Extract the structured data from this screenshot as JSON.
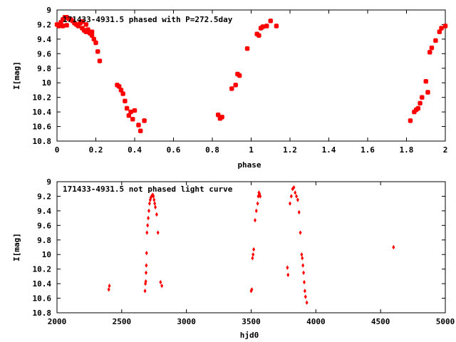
{
  "chart_data": [
    {
      "type": "scatter",
      "title": "171433-4931.5 phased with P=272.5day",
      "xlabel": "phase",
      "ylabel": "I[mag]",
      "xlim": [
        0,
        2
      ],
      "ylim": [
        10.8,
        9
      ],
      "y_inverted": true,
      "xticks": [
        "0",
        "0.2",
        "0.4",
        "0.6",
        "0.8",
        "1",
        "1.2",
        "1.4",
        "1.6",
        "1.8",
        "2"
      ],
      "yticks": [
        "9",
        "9.2",
        "9.4",
        "9.6",
        "9.8",
        "10",
        "10.2",
        "10.4",
        "10.6",
        "10.8"
      ],
      "marker_color": "#ff0000",
      "grid": false,
      "series": [
        {
          "x": [
            0.0,
            0.01,
            0.02,
            0.03,
            0.04,
            0.05,
            0.06,
            0.07,
            0.08,
            0.09,
            0.1,
            0.11,
            0.12,
            0.13,
            0.14,
            0.15,
            0.16,
            0.17,
            0.18,
            0.19,
            0.2,
            0.21,
            0.22,
            0.03,
            0.05,
            0.13,
            0.15,
            0.18,
            0.31,
            0.32,
            0.33,
            0.34,
            0.35,
            0.36,
            0.37,
            0.38,
            0.39,
            0.4,
            0.42,
            0.43,
            0.45,
            0.83,
            0.84,
            0.85,
            0.9,
            0.92,
            0.93,
            0.94,
            0.98,
            1.03,
            1.04,
            1.05,
            1.06,
            1.08,
            1.1,
            1.13,
            1.82,
            1.84,
            1.85,
            1.86,
            1.87,
            1.88,
            1.9,
            1.91,
            1.92,
            1.93,
            1.95,
            1.97,
            1.98,
            2.0
          ],
          "y": [
            9.2,
            9.22,
            9.17,
            9.13,
            9.1,
            9.1,
            9.12,
            9.13,
            9.15,
            9.18,
            9.2,
            9.22,
            9.18,
            9.25,
            9.28,
            9.3,
            9.27,
            9.32,
            9.35,
            9.4,
            9.45,
            9.57,
            9.7,
            9.22,
            9.21,
            9.16,
            9.2,
            9.3,
            10.03,
            10.05,
            10.1,
            10.15,
            10.25,
            10.35,
            10.45,
            10.4,
            10.5,
            10.38,
            10.58,
            10.66,
            10.52,
            10.44,
            10.49,
            10.47,
            10.08,
            10.03,
            9.88,
            9.9,
            9.53,
            9.33,
            9.35,
            9.25,
            9.23,
            9.22,
            9.15,
            9.22,
            10.52,
            10.4,
            10.37,
            10.35,
            10.28,
            10.2,
            9.98,
            10.13,
            9.58,
            9.52,
            9.42,
            9.3,
            9.25,
            9.22
          ]
        }
      ]
    },
    {
      "type": "scatter",
      "title": "171433-4931.5 not phased light curve",
      "xlabel": "hjd0",
      "ylabel": "I[mag]",
      "xlim": [
        2000,
        5000
      ],
      "ylim": [
        10.8,
        9
      ],
      "y_inverted": true,
      "xticks": [
        "2000",
        "2500",
        "3000",
        "3500",
        "4000",
        "4500",
        "5000"
      ],
      "yticks": [
        "9",
        "9.2",
        "9.4",
        "9.6",
        "9.8",
        "10",
        "10.2",
        "10.4",
        "10.6",
        "10.8"
      ],
      "marker_color": "#ff0000",
      "grid": false,
      "series": [
        {
          "x": [
            2400,
            2405,
            2680,
            2683,
            2686,
            2688,
            2690,
            2692,
            2695,
            2700,
            2705,
            2710,
            2715,
            2720,
            2725,
            2730,
            2735,
            2740,
            2745,
            2750,
            2755,
            2760,
            2770,
            2780,
            2800,
            2810,
            3500,
            3505,
            3510,
            3515,
            3520,
            3530,
            3540,
            3550,
            3555,
            3560,
            3565,
            3570,
            3780,
            3785,
            3800,
            3810,
            3820,
            3830,
            3840,
            3850,
            3860,
            3870,
            3880,
            3890,
            3895,
            3900,
            3905,
            3910,
            3915,
            3920,
            3930,
            4600
          ],
          "y": [
            10.48,
            10.43,
            10.5,
            10.4,
            10.37,
            10.25,
            10.15,
            9.98,
            9.7,
            9.6,
            9.5,
            9.4,
            9.3,
            9.25,
            9.22,
            9.2,
            9.19,
            9.18,
            9.2,
            9.25,
            9.3,
            9.35,
            9.45,
            9.7,
            10.38,
            10.43,
            10.5,
            10.48,
            10.05,
            10.0,
            9.93,
            9.53,
            9.4,
            9.3,
            9.2,
            9.15,
            9.17,
            9.2,
            10.18,
            10.28,
            9.3,
            9.2,
            9.1,
            9.08,
            9.15,
            9.2,
            9.25,
            9.42,
            9.7,
            10.0,
            10.05,
            10.15,
            10.25,
            10.38,
            10.5,
            10.58,
            10.66,
            9.9
          ]
        }
      ]
    }
  ]
}
